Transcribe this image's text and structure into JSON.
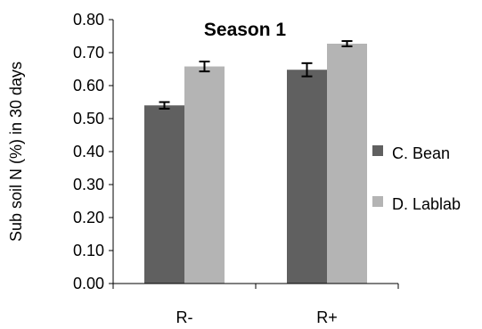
{
  "chart_data": {
    "type": "bar",
    "title": "Season 1",
    "xlabel": "",
    "ylabel": "Sub soil N (%) in 30 days",
    "categories": [
      "R-",
      "R+"
    ],
    "series": [
      {
        "name": "C. Bean",
        "values": [
          0.54,
          0.648
        ],
        "errors": [
          0.01,
          0.02
        ],
        "color": "#606060"
      },
      {
        "name": "D. Lablab",
        "values": [
          0.658,
          0.727
        ],
        "errors": [
          0.015,
          0.008
        ],
        "color": "#b4b4b4"
      }
    ],
    "ylim": [
      0,
      0.8
    ],
    "yticks": [
      "0.00",
      "0.10",
      "0.20",
      "0.30",
      "0.40",
      "0.50",
      "0.60",
      "0.70",
      "0.80"
    ],
    "grid": false,
    "legend_position": "right"
  }
}
